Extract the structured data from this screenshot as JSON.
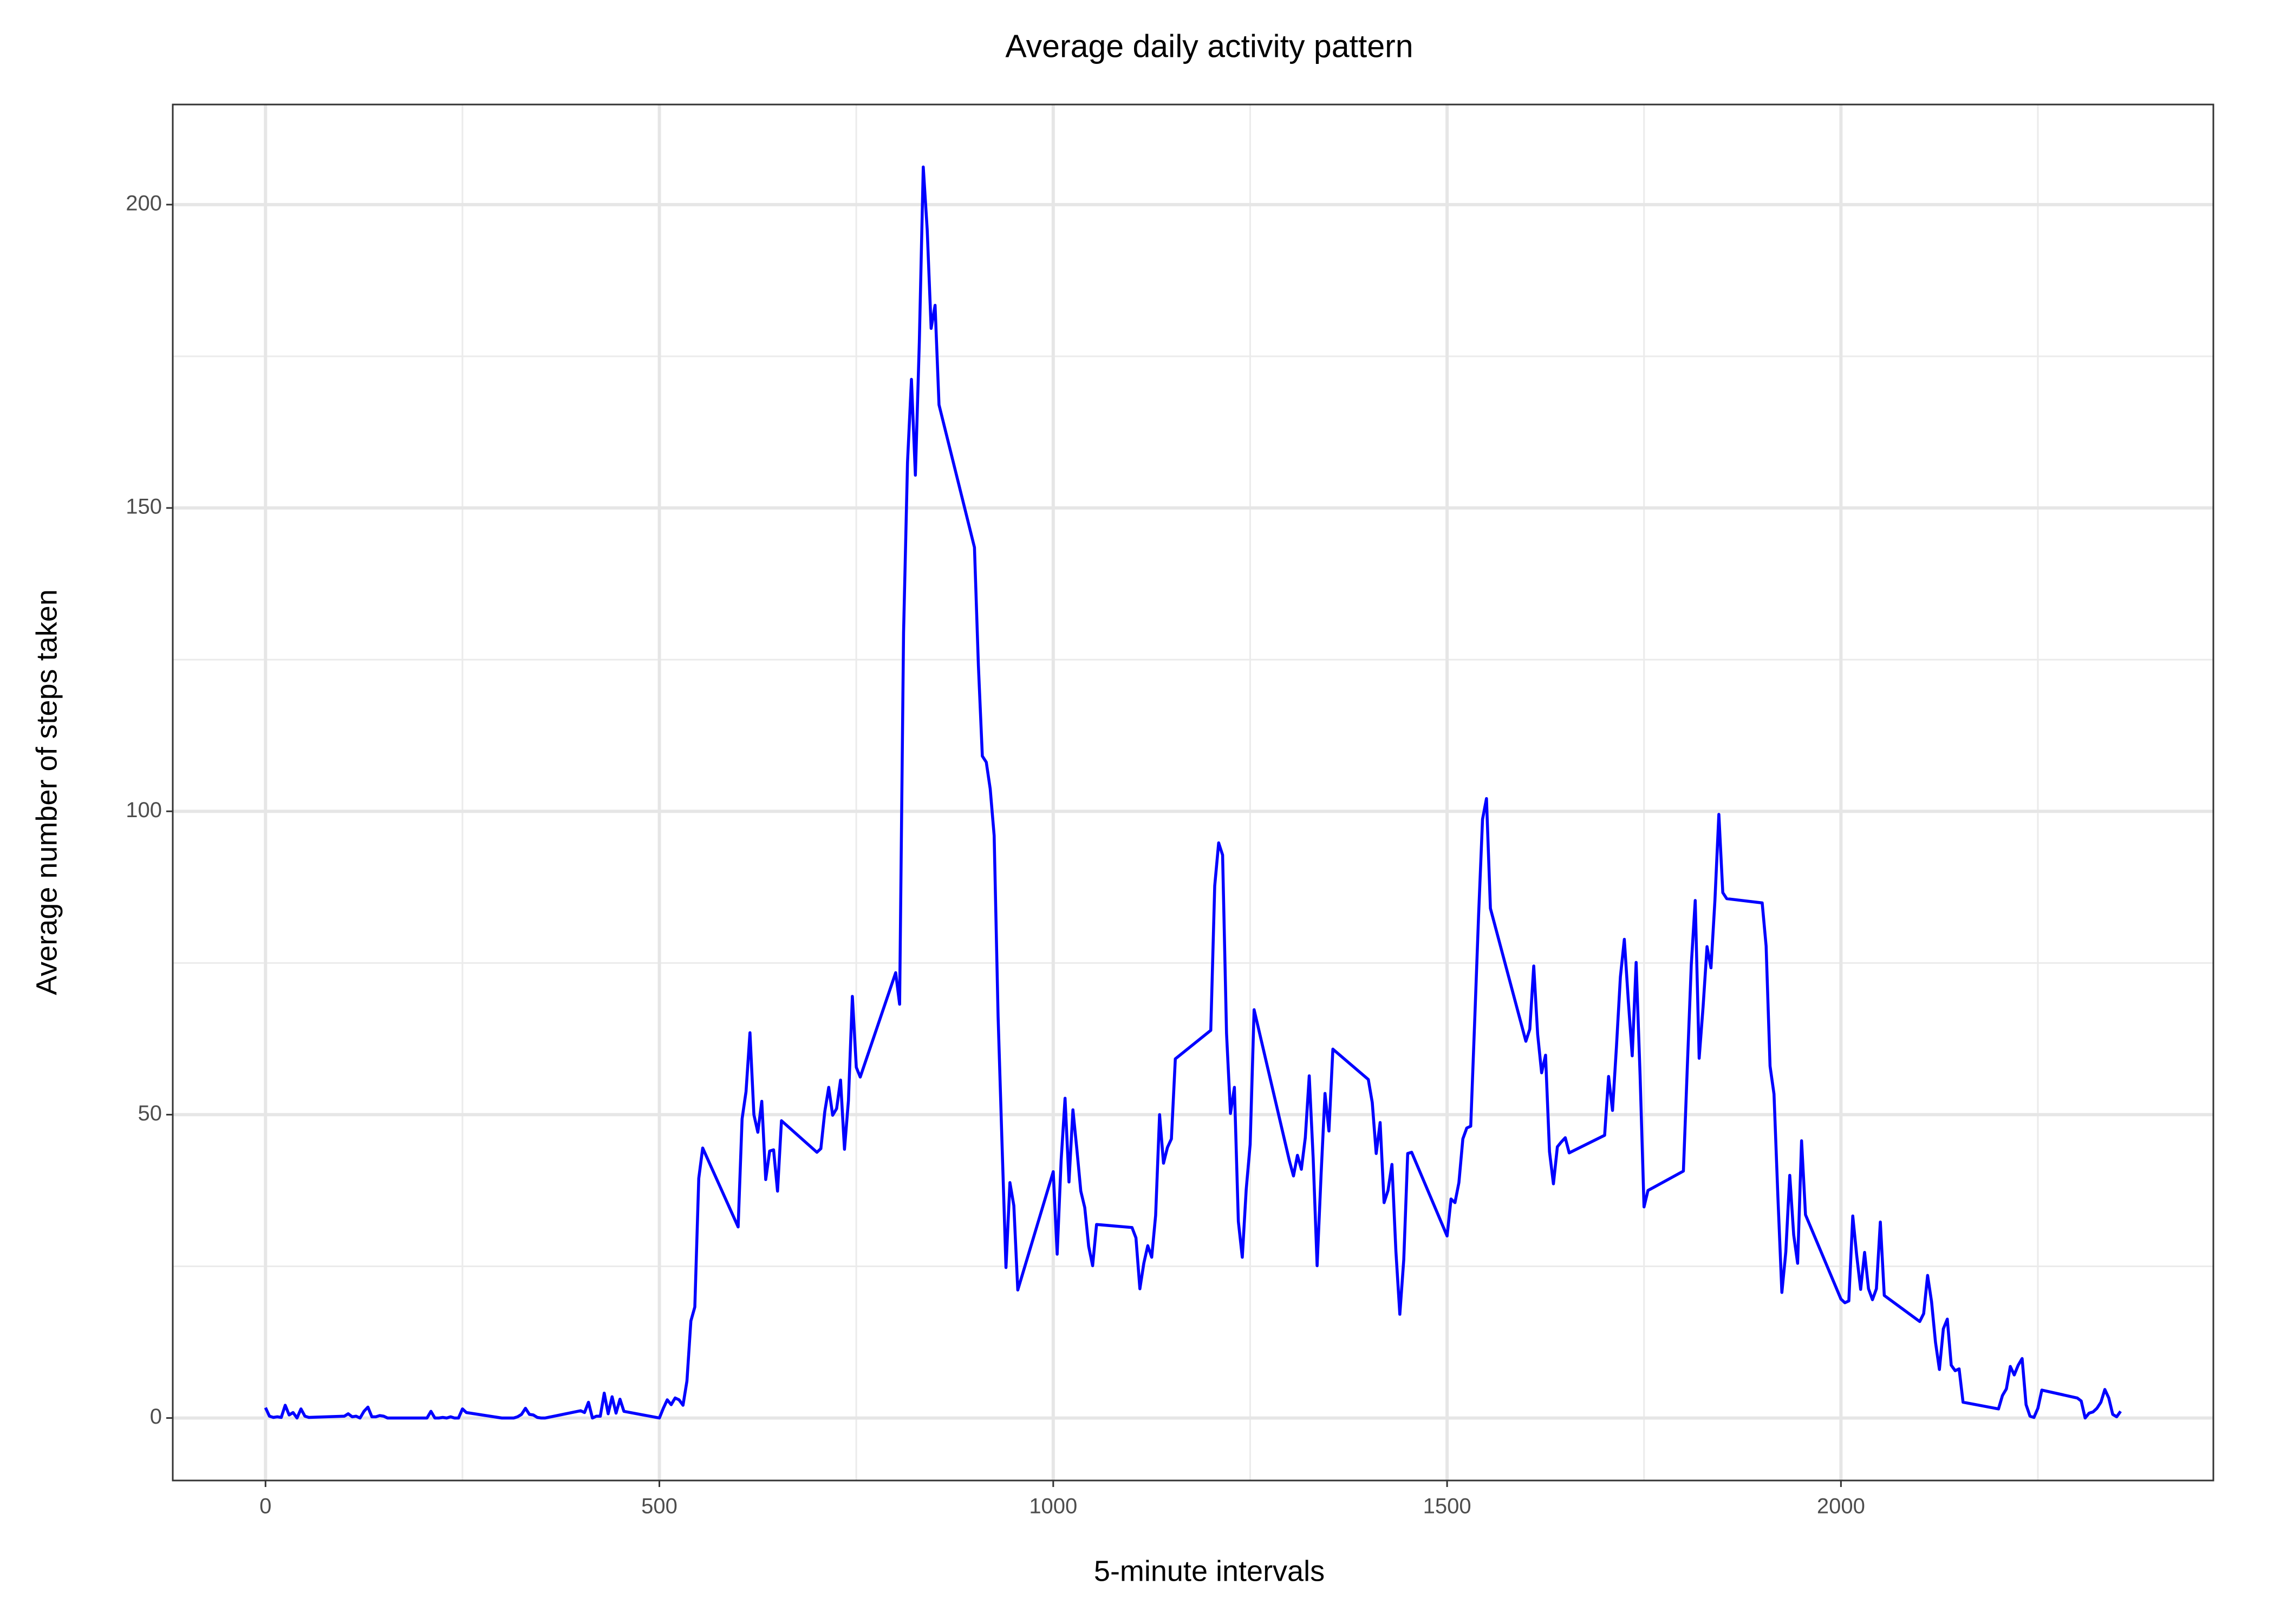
{
  "chart_data": {
    "type": "line",
    "title": "Average daily activity pattern",
    "x_label": "5-minute intervals",
    "y_label": "Average number of steps taken",
    "xlim": [
      -117.75,
      2472.75
    ],
    "xticks": [
      0,
      500,
      1000,
      1500,
      2000
    ],
    "ylim": [
      -10.3,
      216.5
    ],
    "yticks": [
      0,
      50,
      100,
      150,
      200
    ],
    "grid": true,
    "minor_grid": true,
    "series": [
      {
        "color": "#0000ff",
        "x": [
          0,
          5,
          10,
          15,
          20,
          25,
          30,
          35,
          40,
          45,
          50,
          55,
          100,
          105,
          110,
          115,
          120,
          125,
          130,
          135,
          140,
          145,
          150,
          155,
          200,
          205,
          210,
          215,
          220,
          225,
          230,
          235,
          240,
          245,
          250,
          255,
          300,
          305,
          310,
          315,
          320,
          325,
          330,
          335,
          340,
          345,
          350,
          355,
          400,
          405,
          410,
          415,
          420,
          425,
          430,
          435,
          440,
          445,
          450,
          455,
          500,
          505,
          510,
          515,
          520,
          525,
          530,
          535,
          540,
          545,
          550,
          555,
          600,
          605,
          610,
          615,
          620,
          625,
          630,
          635,
          640,
          645,
          650,
          655,
          700,
          705,
          710,
          715,
          720,
          725,
          730,
          735,
          740,
          745,
          750,
          755,
          800,
          805,
          810,
          815,
          820,
          825,
          830,
          835,
          840,
          845,
          850,
          855,
          900,
          905,
          910,
          915,
          920,
          925,
          930,
          935,
          940,
          945,
          950,
          955,
          1000,
          1005,
          1010,
          1015,
          1020,
          1025,
          1030,
          1035,
          1040,
          1045,
          1050,
          1055,
          1100,
          1105,
          1110,
          1115,
          1120,
          1125,
          1130,
          1135,
          1140,
          1145,
          1150,
          1155,
          1200,
          1205,
          1210,
          1215,
          1220,
          1225,
          1230,
          1235,
          1240,
          1245,
          1250,
          1255,
          1300,
          1305,
          1310,
          1315,
          1320,
          1325,
          1330,
          1335,
          1340,
          1345,
          1350,
          1355,
          1400,
          1405,
          1410,
          1415,
          1420,
          1425,
          1430,
          1435,
          1440,
          1445,
          1450,
          1455,
          1500,
          1505,
          1510,
          1515,
          1520,
          1525,
          1530,
          1535,
          1540,
          1545,
          1550,
          1555,
          1600,
          1605,
          1610,
          1615,
          1620,
          1625,
          1630,
          1635,
          1640,
          1645,
          1650,
          1655,
          1700,
          1705,
          1710,
          1715,
          1720,
          1725,
          1730,
          1735,
          1740,
          1745,
          1750,
          1755,
          1800,
          1805,
          1810,
          1815,
          1820,
          1825,
          1830,
          1835,
          1840,
          1845,
          1850,
          1855,
          1900,
          1905,
          1910,
          1915,
          1920,
          1925,
          1930,
          1935,
          1940,
          1945,
          1950,
          1955,
          2000,
          2005,
          2010,
          2015,
          2020,
          2025,
          2030,
          2035,
          2040,
          2045,
          2050,
          2055,
          2100,
          2105,
          2110,
          2115,
          2120,
          2125,
          2130,
          2135,
          2140,
          2145,
          2150,
          2155,
          2200,
          2205,
          2210,
          2215,
          2220,
          2225,
          2230,
          2235,
          2240,
          2245,
          2250,
          2255,
          2300,
          2305,
          2310,
          2315,
          2320,
          2325,
          2330,
          2335,
          2340,
          2345,
          2350,
          2355
        ],
        "values": [
          1.7,
          0.3,
          0.1,
          0.2,
          0.1,
          2.1,
          0.5,
          0.9,
          0,
          1.5,
          0.3,
          0.1,
          0.3,
          0.7,
          0.2,
          0.3,
          0,
          1.1,
          1.8,
          0.2,
          0.2,
          0.4,
          0.3,
          0,
          0,
          0,
          1.1,
          0,
          0,
          0.1,
          0,
          0.2,
          0,
          0,
          1.5,
          0.9,
          0,
          0,
          0,
          0,
          0.2,
          0.6,
          1.6,
          0.6,
          0.5,
          0.1,
          0,
          0,
          1.2,
          0.9,
          2.6,
          0,
          0.3,
          0.3,
          4.1,
          0.7,
          3.5,
          0.8,
          3.1,
          1.1,
          0,
          1.6,
          3.0,
          2.2,
          3.3,
          3.0,
          2.1,
          6.1,
          16.0,
          18.3,
          39.5,
          44.5,
          31.5,
          49.3,
          53.8,
          63.5,
          50.0,
          47.1,
          52.2,
          39.3,
          44.0,
          44.2,
          37.4,
          49.0,
          43.8,
          44.4,
          50.5,
          54.5,
          49.9,
          51.0,
          55.7,
          44.3,
          52.3,
          69.5,
          57.8,
          56.2,
          73.4,
          68.2,
          129.4,
          157.5,
          171.2,
          155.4,
          177.3,
          206.2,
          195.9,
          179.6,
          183.4,
          167.0,
          143.5,
          124.0,
          109.1,
          108.1,
          103.7,
          96.0,
          66.2,
          45.2,
          24.8,
          38.8,
          35.0,
          21.1,
          40.6,
          27.0,
          42.4,
          52.7,
          38.9,
          50.8,
          44.3,
          37.4,
          34.7,
          28.3,
          25.1,
          31.9,
          31.4,
          29.7,
          21.3,
          25.5,
          28.4,
          26.5,
          33.4,
          50.0,
          42.0,
          44.6,
          46.0,
          59.2,
          63.9,
          87.7,
          94.8,
          92.8,
          63.4,
          50.2,
          54.5,
          32.4,
          26.5,
          37.7,
          45.1,
          67.3,
          42.3,
          39.9,
          43.3,
          41.0,
          46.2,
          56.4,
          42.8,
          25.1,
          40.0,
          53.5,
          47.3,
          60.8,
          55.8,
          52.0,
          43.6,
          48.7,
          35.5,
          37.5,
          41.8,
          27.5,
          17.1,
          26.1,
          43.6,
          43.8,
          30.0,
          36.1,
          35.5,
          38.8,
          46.0,
          47.8,
          48.1,
          65.3,
          82.9,
          98.7,
          102.1,
          84.0,
          62.1,
          64.1,
          74.5,
          63.2,
          56.9,
          59.8,
          43.9,
          38.6,
          44.7,
          45.5,
          46.2,
          43.7,
          46.6,
          56.3,
          50.7,
          61.2,
          72.7,
          78.9,
          68.9,
          59.7,
          75.1,
          56.5,
          34.8,
          37.5,
          40.7,
          58.0,
          74.7,
          85.3,
          59.3,
          67.8,
          77.7,
          74.2,
          85.3,
          99.5,
          86.6,
          85.6,
          84.9,
          77.8,
          58.0,
          53.4,
          36.3,
          20.7,
          27.4,
          40.0,
          30.2,
          25.5,
          45.7,
          33.5,
          19.6,
          19.0,
          19.3,
          33.3,
          26.8,
          21.2,
          27.3,
          21.3,
          19.5,
          21.3,
          32.3,
          20.2,
          15.9,
          17.2,
          23.5,
          19.2,
          12.5,
          8.0,
          14.7,
          16.3,
          8.7,
          7.8,
          8.1,
          2.6,
          1.5,
          3.7,
          4.8,
          8.5,
          7.1,
          8.7,
          9.8,
          2.2,
          0.3,
          0.1,
          1.6,
          4.6,
          3.3,
          2.8,
          0,
          0.8,
          1.0,
          1.6,
          2.6,
          4.7,
          3.3,
          0.6,
          0.2,
          1.1
        ]
      }
    ]
  }
}
